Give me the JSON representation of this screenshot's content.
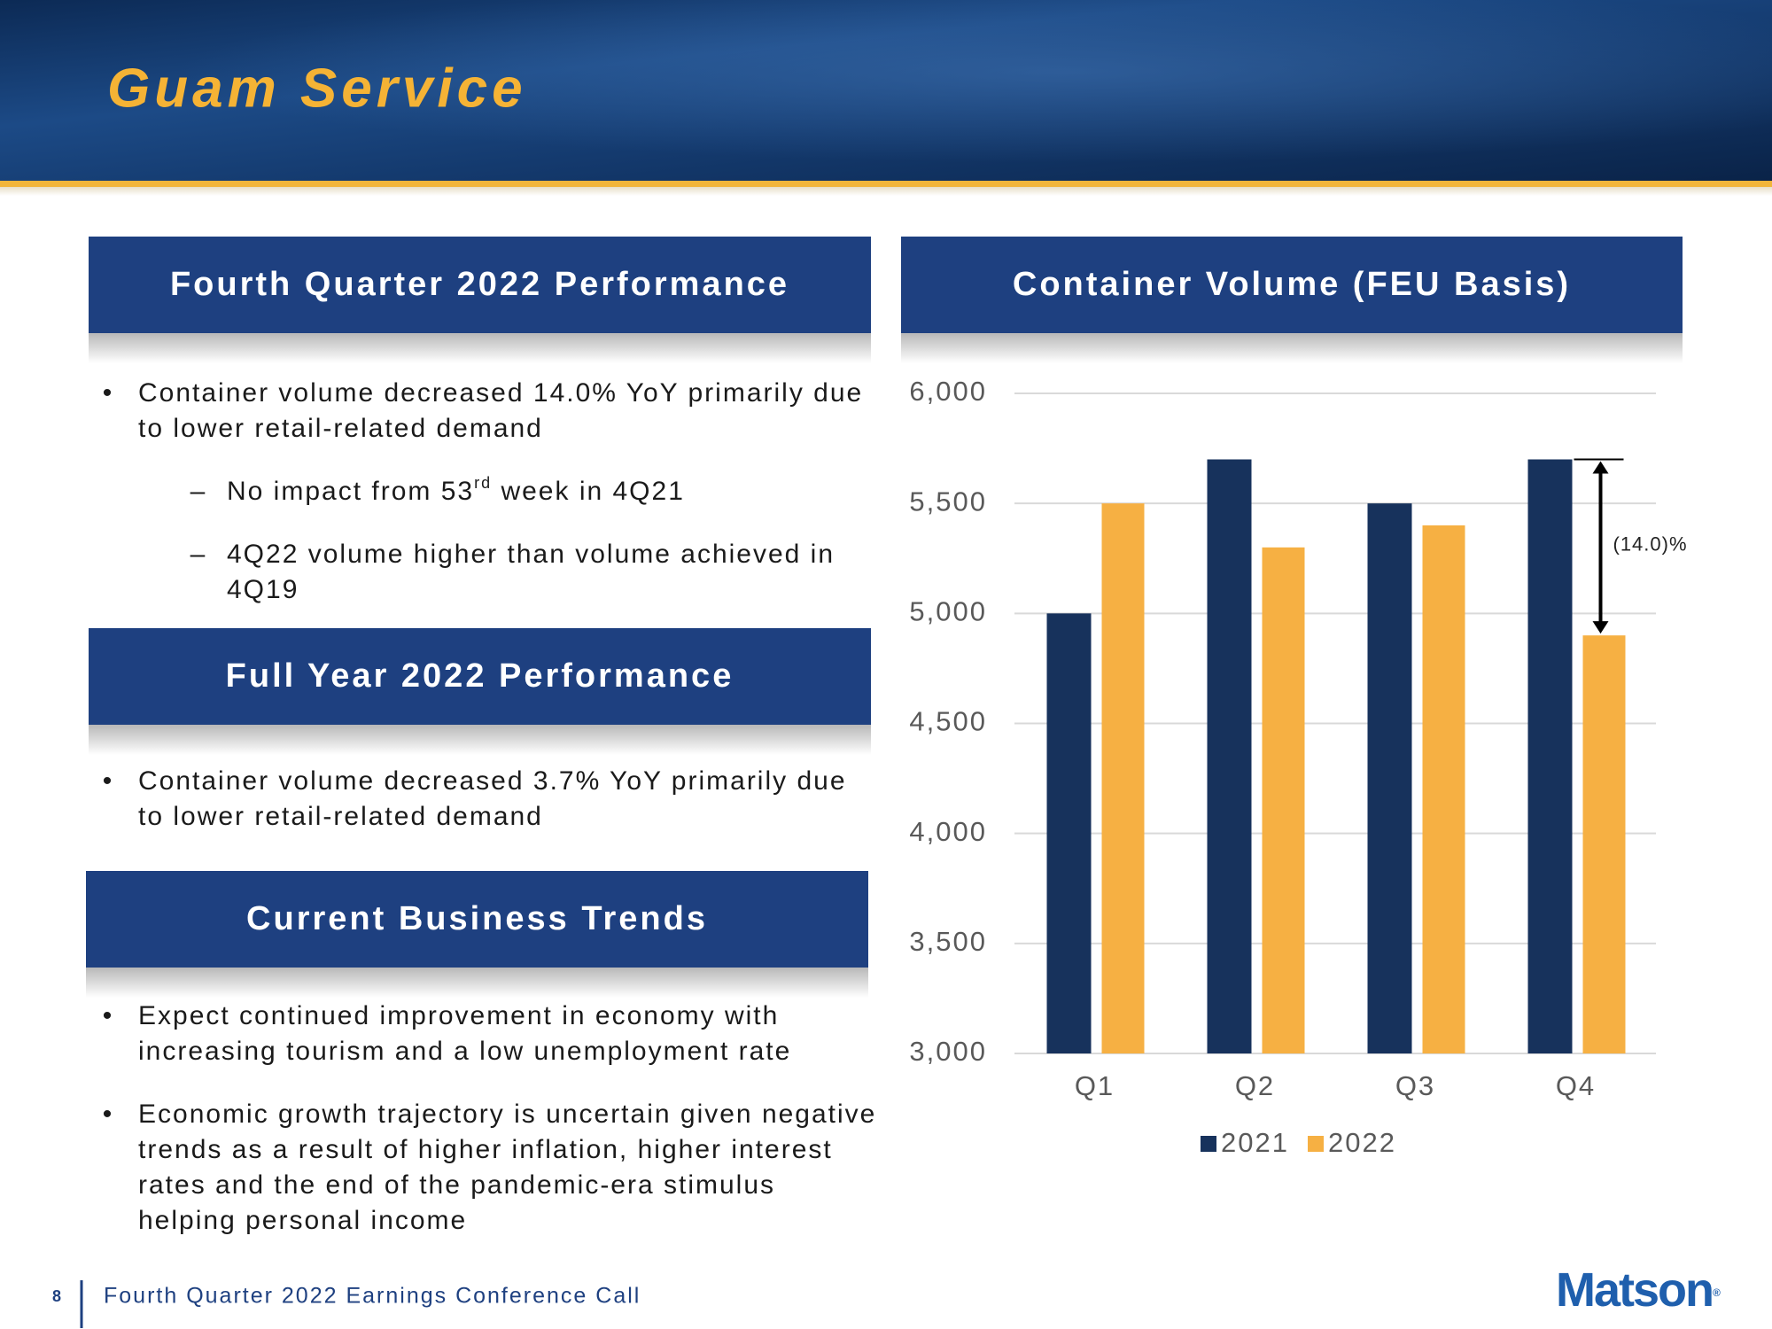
{
  "header": {
    "title": "Guam Service"
  },
  "sections": [
    {
      "heading": "Fourth Quarter 2022 Performance",
      "items": [
        {
          "level": 1,
          "lines": [
            "Container volume decreased 14.0% YoY primarily due",
            "to lower retail-related demand"
          ]
        },
        {
          "level": 2,
          "lines": [
            "No impact from 53"
          ],
          "sup": "rd",
          "after": " week in 4Q21"
        },
        {
          "level": 2,
          "lines": [
            "4Q22 volume higher than volume achieved in",
            "4Q19"
          ]
        }
      ]
    },
    {
      "heading": "Full Year 2022 Performance",
      "items": [
        {
          "level": 1,
          "lines": [
            "Container volume decreased 3.7% YoY primarily due",
            "to lower retail-related demand"
          ]
        }
      ]
    },
    {
      "heading": "Current Business Trends",
      "items": [
        {
          "level": 1,
          "lines": [
            "Expect continued improvement in economy with",
            "increasing tourism and a low unemployment rate"
          ]
        },
        {
          "level": 1,
          "lines": [
            "Economic growth trajectory is uncertain given negative",
            "trends as a result of higher inflation, higher interest",
            "rates and the end of the pandemic-era stimulus",
            "helping personal income"
          ]
        }
      ]
    }
  ],
  "footer": {
    "page": "8",
    "text": "Fourth Quarter 2022 Earnings Conference Call",
    "logo": "Matson",
    "logo_mark": "®"
  },
  "chart_data": {
    "type": "bar",
    "title": "Container Volume (FEU Basis)",
    "categories": [
      "Q1",
      "Q2",
      "Q3",
      "Q4"
    ],
    "series": [
      {
        "name": "2021",
        "color": "#17325c",
        "values": [
          5000,
          5700,
          5500,
          5700
        ]
      },
      {
        "name": "2022",
        "color": "#f6b043",
        "values": [
          5500,
          5300,
          5400,
          4900
        ]
      }
    ],
    "ylim": [
      3000,
      6000
    ],
    "yticks": [
      {
        "value": 3000,
        "label": "3,000"
      },
      {
        "value": 3500,
        "label": "3,500"
      },
      {
        "value": 4000,
        "label": "4,000"
      },
      {
        "value": 4500,
        "label": "4,500"
      },
      {
        "value": 5000,
        "label": "5,000"
      },
      {
        "value": 5500,
        "label": "5,500"
      },
      {
        "value": 6000,
        "label": "6,000"
      }
    ],
    "grid": true,
    "legend": "bottom",
    "annotation": "(14.0)%"
  }
}
